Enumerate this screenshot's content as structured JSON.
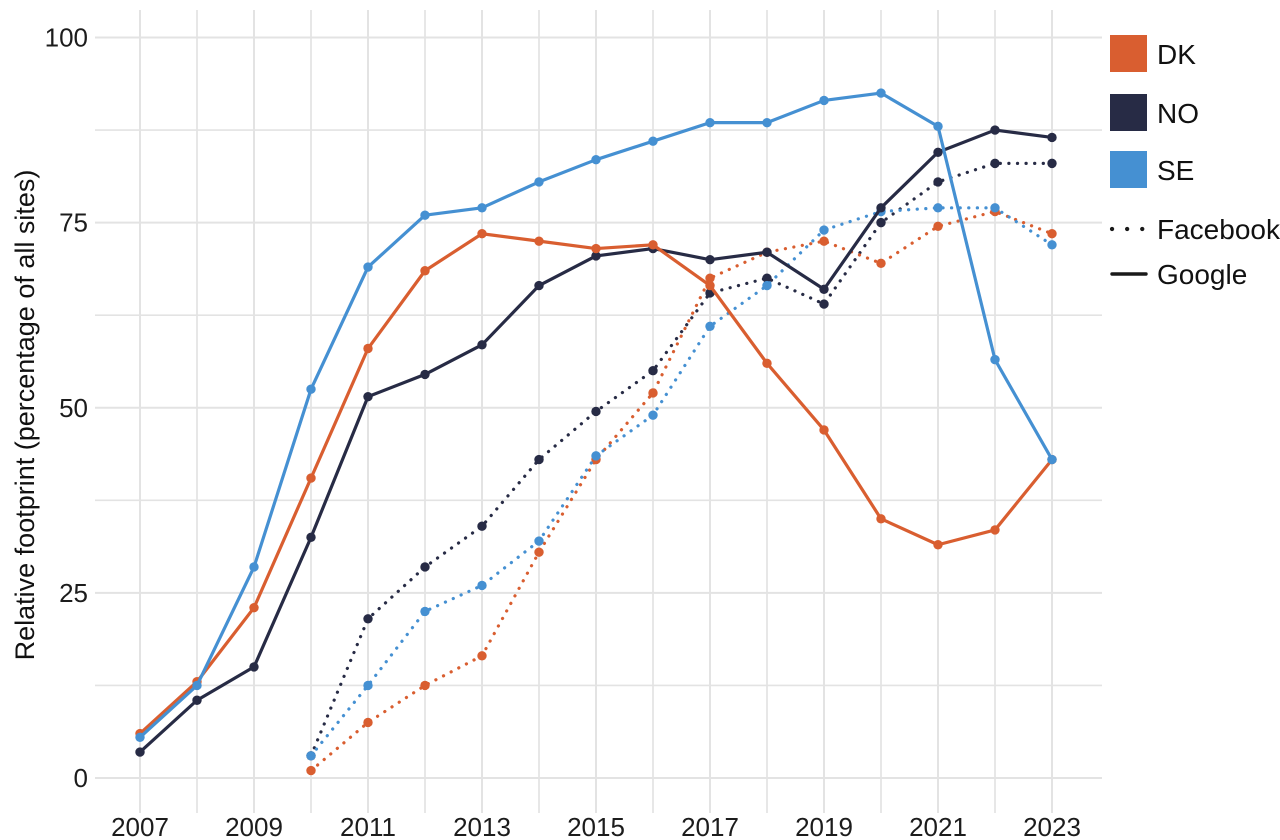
{
  "page": {
    "background": "#ffffff"
  },
  "colors": {
    "dk": "#d95e30",
    "no": "#272b45",
    "se": "#4590d2",
    "gridline": "#e3e3e3",
    "text": "#1a1a1a"
  },
  "legend": {
    "countries": [
      {
        "code": "DK",
        "color": "#d95e30"
      },
      {
        "code": "NO",
        "color": "#272b45"
      },
      {
        "code": "SE",
        "color": "#4590d2"
      }
    ],
    "styles": [
      {
        "label": "Facebook",
        "style": "dotted"
      },
      {
        "label": "Google",
        "style": "solid"
      }
    ]
  },
  "chart_data": {
    "type": "line",
    "title": "",
    "xlabel": "",
    "ylabel": "Relative footprint (percentage of all sites)",
    "x": [
      2007,
      2008,
      2009,
      2010,
      2011,
      2012,
      2013,
      2014,
      2015,
      2016,
      2017,
      2018,
      2019,
      2020,
      2021,
      2022,
      2023
    ],
    "xlim": [
      2007,
      2023
    ],
    "ylim": [
      0,
      100
    ],
    "x_ticks": [
      2007,
      2009,
      2011,
      2013,
      2015,
      2017,
      2019,
      2021,
      2023
    ],
    "y_ticks": [
      0,
      25,
      50,
      75,
      100
    ],
    "y_minor_step": 12.5,
    "grid": "major and minor, light gray, white background",
    "legend_position": "right",
    "series": [
      {
        "name": "Facebook NO",
        "country": "NO",
        "service": "Facebook",
        "style": "dotted",
        "color": "#272b45",
        "x_start": 2010,
        "values": [
          3,
          21.5,
          28.5,
          34,
          43,
          49.5,
          55,
          65.5,
          67.5,
          64,
          75,
          80.5,
          83,
          83
        ]
      },
      {
        "name": "Facebook DK",
        "country": "DK",
        "service": "Facebook",
        "style": "dotted",
        "color": "#d95e30",
        "x_start": 2010,
        "values": [
          1,
          7.5,
          12.5,
          16.5,
          30.5,
          43,
          52,
          67.5,
          71,
          72.5,
          69.5,
          74.5,
          76.5,
          73.5
        ]
      },
      {
        "name": "Facebook SE",
        "country": "SE",
        "service": "Facebook",
        "style": "dotted",
        "color": "#4590d2",
        "x_start": 2010,
        "values": [
          3,
          12.5,
          22.5,
          26,
          32,
          43.5,
          49,
          61,
          66.5,
          74,
          76.5,
          77,
          77,
          72
        ]
      },
      {
        "name": "Google NO",
        "country": "NO",
        "service": "Google",
        "style": "solid",
        "color": "#272b45",
        "x_start": 2007,
        "values": [
          3.5,
          10.5,
          15,
          32.5,
          51.5,
          54.5,
          58.5,
          66.5,
          70.5,
          71.5,
          70,
          71,
          66,
          77,
          84.5,
          87.5,
          86.5
        ]
      },
      {
        "name": "Google DK",
        "country": "DK",
        "service": "Google",
        "style": "solid",
        "color": "#d95e30",
        "x_start": 2007,
        "values": [
          6,
          13,
          23,
          40.5,
          58,
          68.5,
          73.5,
          72.5,
          71.5,
          72,
          66.5,
          56,
          47,
          35,
          31.5,
          33.5,
          43
        ]
      },
      {
        "name": "Google SE",
        "country": "SE",
        "service": "Google",
        "style": "solid",
        "color": "#4590d2",
        "x_start": 2007,
        "values": [
          5.5,
          12.5,
          28.5,
          52.5,
          69,
          76,
          77,
          80.5,
          83.5,
          86,
          88.5,
          88.5,
          91.5,
          92.5,
          88,
          56.5,
          43
        ]
      }
    ]
  }
}
